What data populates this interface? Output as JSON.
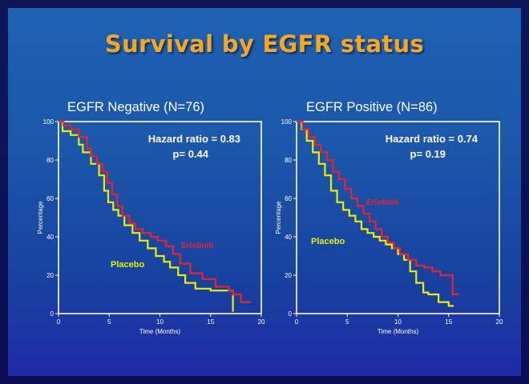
{
  "slide": {
    "title": "Survival by EGFR status"
  },
  "colors": {
    "erlotinib": "#e8232e",
    "placebo": "#e6f000",
    "background": "#1e5cb2",
    "title": "#f5a81e",
    "frame": "#ffffff"
  },
  "chart_data": [
    {
      "type": "line",
      "title": "EGFR Negative (N=76)",
      "xlabel": "Time (Months)",
      "ylabel": "Percentage",
      "xlim": [
        0,
        20
      ],
      "ylim": [
        0,
        100
      ],
      "xticks": [
        0,
        5,
        10,
        15,
        20
      ],
      "yticks": [
        0,
        20,
        40,
        60,
        80,
        100
      ],
      "grid": false,
      "annotations": [
        "Hazard ratio = 0.83",
        "p= 0.44"
      ],
      "series": [
        {
          "name": "Erlotinib",
          "color": "#e8232e",
          "x": [
            0,
            0.5,
            1.2,
            2.0,
            2.8,
            3.2,
            3.8,
            4.3,
            4.8,
            5.3,
            5.8,
            6.3,
            7.0,
            7.6,
            8.3,
            9.1,
            9.8,
            10.6,
            11.3,
            12.0,
            13.0,
            14.2,
            15.5,
            16.8,
            17.2,
            18.0,
            19.0
          ],
          "y": [
            100,
            98,
            96,
            92,
            86,
            82,
            78,
            74,
            68,
            62,
            56,
            51,
            47,
            44,
            42,
            40,
            38,
            35,
            31,
            26,
            21,
            18,
            14,
            12,
            10,
            6,
            6
          ]
        },
        {
          "name": "Placebo",
          "color": "#e6f000",
          "x": [
            0,
            0.4,
            1.2,
            2.0,
            2.4,
            3.2,
            4.0,
            4.5,
            4.9,
            5.4,
            5.9,
            6.5,
            7.3,
            8.0,
            8.8,
            9.6,
            10.4,
            11.0,
            11.8,
            12.5,
            13.5,
            15.0,
            16.5,
            17.2,
            17.2
          ],
          "y": [
            100,
            95,
            93,
            88,
            84,
            78,
            72,
            64,
            58,
            54,
            51,
            46,
            42,
            38,
            34,
            30,
            27,
            24,
            20,
            16,
            13,
            12,
            12,
            10,
            1
          ]
        }
      ]
    },
    {
      "type": "line",
      "title": "EGFR Positive (N=86)",
      "xlabel": "Time (Months)",
      "ylabel": "Percentage",
      "xlim": [
        0,
        20
      ],
      "ylim": [
        0,
        100
      ],
      "xticks": [
        0,
        5,
        10,
        15,
        20
      ],
      "yticks": [
        0,
        20,
        40,
        60,
        80,
        100
      ],
      "grid": false,
      "annotations": [
        "Hazard ratio = 0.74",
        "p= 0.19"
      ],
      "series": [
        {
          "name": "Erlotinib",
          "color": "#e8232e",
          "x": [
            0,
            0.6,
            1.2,
            1.8,
            2.4,
            3.0,
            3.6,
            4.2,
            4.8,
            5.4,
            6.0,
            6.6,
            7.2,
            7.8,
            8.4,
            9.0,
            9.6,
            10.2,
            11.0,
            11.8,
            12.6,
            13.4,
            14.2,
            15.0,
            15.4,
            16.0
          ],
          "y": [
            100,
            96,
            92,
            88,
            84,
            80,
            74,
            70,
            65,
            60,
            56,
            52,
            48,
            44,
            40,
            37,
            34,
            31,
            28,
            25,
            24,
            22,
            20,
            20,
            10,
            10
          ]
        },
        {
          "name": "Placebo",
          "color": "#e6f000",
          "x": [
            0,
            0.5,
            1.0,
            1.6,
            2.2,
            2.8,
            3.4,
            4.0,
            4.6,
            5.2,
            5.8,
            6.4,
            7.0,
            7.6,
            8.2,
            8.8,
            9.4,
            10.0,
            10.6,
            11.2,
            11.8,
            12.5,
            13.0,
            14.0,
            15.0,
            15.5
          ],
          "y": [
            100,
            96,
            90,
            84,
            78,
            72,
            64,
            58,
            54,
            51,
            48,
            44,
            42,
            40,
            38,
            36,
            34,
            31,
            28,
            22,
            16,
            11,
            10,
            6,
            4,
            4
          ]
        }
      ]
    }
  ]
}
